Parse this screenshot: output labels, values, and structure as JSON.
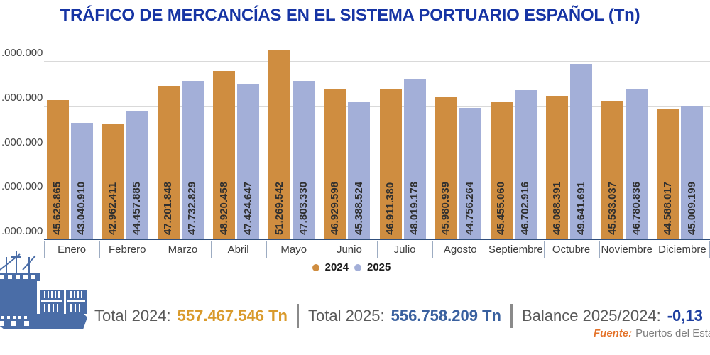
{
  "title": "TRÁFICO DE MERCANCÍAS EN EL SISTEMA PORTUARIO ESPAÑOL (Tn)",
  "colors": {
    "title": "#1634a4",
    "bar_2024": "#cf8d40",
    "bar_2025": "#a3afd8",
    "gridline": "#d9d9d9",
    "axis_line": "#31507d",
    "total_2024_value": "#d99a2b",
    "total_2025_value": "#39609f",
    "balance_value": "#1e3fa0",
    "label_gray": "#595959",
    "source_orange": "#e4732a",
    "ship_blue": "#4a6da7"
  },
  "chart_data": {
    "type": "bar",
    "title": "TRÁFICO DE MERCANCÍAS EN EL SISTEMA PORTUARIO ESPAÑOL (Tn)",
    "categories": [
      "Enero",
      "Febrero",
      "Marzo",
      "Abril",
      "Mayo",
      "Junio",
      "Julio",
      "Agosto",
      "Septiembre",
      "Octubre",
      "Noviembre",
      "Diciembre"
    ],
    "series": [
      {
        "name": "2024",
        "values": [
          45626865,
          42962411,
          47201848,
          48920458,
          51269542,
          46929598,
          46911380,
          45980939,
          45455060,
          46088391,
          45533037,
          44588017
        ]
      },
      {
        "name": "2025",
        "values": [
          43040910,
          44457885,
          47732829,
          47424647,
          47803330,
          45388524,
          48019178,
          44756264,
          46702916,
          49641691,
          46780836,
          45009199
        ]
      }
    ],
    "xlabel": "",
    "ylabel": "",
    "ylim": [
      30000000,
      50000000
    ],
    "ytick_interval": 5000000,
    "ytick_label_visible": ".000.000",
    "grid": true,
    "legend_position": "bottom",
    "value_labels": "rotated-vertical-inside-bars"
  },
  "legend": {
    "items": [
      {
        "label": "2024"
      },
      {
        "label": "2025"
      }
    ]
  },
  "totals": {
    "label_2024": "Total 2024:",
    "value_2024": "557.467.546 Tn",
    "label_2025": "Total 2025:",
    "value_2025": "556.758.209 Tn",
    "label_balance": "Balance 2025/2024:",
    "value_balance": "-0,13"
  },
  "source": {
    "label": "Fuente:",
    "text": "Puertos del Estado"
  },
  "icons": {
    "ship": "container-ship-icon"
  }
}
